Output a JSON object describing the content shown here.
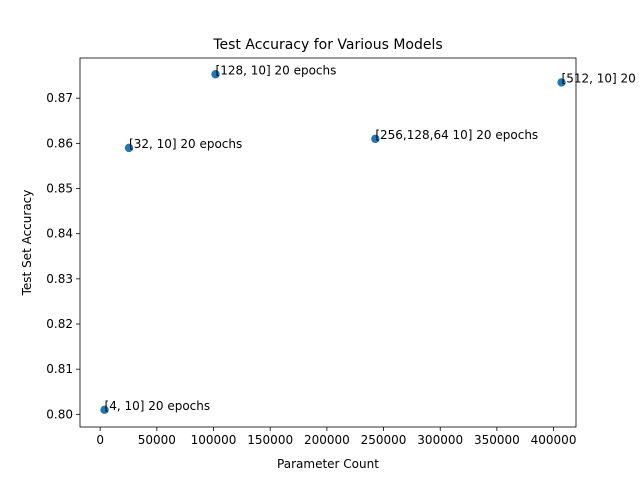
{
  "chart_data": {
    "type": "scatter",
    "title": "Test Accuracy for Various Models",
    "xlabel": "Parameter Count",
    "ylabel": "Test Set Accuracy",
    "xlim": [
      -17800,
      419800
    ],
    "ylim": [
      0.7972,
      0.8789
    ],
    "xticks": [
      0,
      50000,
      100000,
      150000,
      200000,
      250000,
      300000,
      350000,
      400000
    ],
    "xtick_labels": [
      "0",
      "50000",
      "100000",
      "150000",
      "200000",
      "250000",
      "300000",
      "350000",
      "400000"
    ],
    "yticks": [
      0.8,
      0.81,
      0.82,
      0.83,
      0.84,
      0.85,
      0.86,
      0.87
    ],
    "ytick_labels": [
      "0.80",
      "0.81",
      "0.82",
      "0.83",
      "0.84",
      "0.85",
      "0.86",
      "0.87"
    ],
    "grid": false,
    "color": "#1f77b4",
    "points": [
      {
        "x": 3850,
        "y": 0.801,
        "label": "[4, 10] 20 epochs"
      },
      {
        "x": 25450,
        "y": 0.859,
        "label": "[32, 10] 20 epochs"
      },
      {
        "x": 101770,
        "y": 0.8753,
        "label": "[128, 10] 20 epochs"
      },
      {
        "x": 242762,
        "y": 0.861,
        "label": "[256,128,64 10] 20 epochs"
      },
      {
        "x": 407050,
        "y": 0.8735,
        "label": "[512, 10] 20"
      }
    ]
  }
}
